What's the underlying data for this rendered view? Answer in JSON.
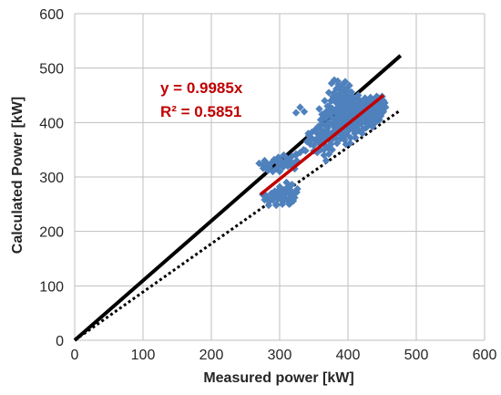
{
  "chart_data": {
    "type": "scatter",
    "xlabel": "Measured power [kW]",
    "ylabel": "Calculated Power [kW]",
    "xlim": [
      0,
      600
    ],
    "ylim": [
      0,
      600
    ],
    "x_ticks": [
      "0",
      "100",
      "200",
      "300",
      "400",
      "500",
      "600"
    ],
    "y_ticks": [
      "0",
      "100",
      "200",
      "300",
      "400",
      "500",
      "600"
    ],
    "grid": true,
    "annotation": {
      "equation": "y = 0.9985x",
      "r_squared": "R² = 0.5851"
    },
    "colors": {
      "points": "#4f81bd",
      "trend": "#c00000",
      "reference": "#000000",
      "grid": "#bfbfbf"
    },
    "lines": [
      {
        "role": "reference-solid",
        "from": [
          0,
          0
        ],
        "to": [
          477,
          523
        ]
      },
      {
        "role": "reference-dotted",
        "from": [
          0,
          0
        ],
        "to": [
          477,
          423
        ]
      },
      {
        "role": "trendline",
        "from": [
          272,
          268
        ],
        "to": [
          452,
          450
        ]
      }
    ],
    "points": [
      [
        270,
        325
      ],
      [
        275,
        322
      ],
      [
        280,
        320
      ],
      [
        278,
        330
      ],
      [
        285,
        318
      ],
      [
        288,
        326
      ],
      [
        292,
        332
      ],
      [
        295,
        315
      ],
      [
        300,
        322
      ],
      [
        302,
        330
      ],
      [
        305,
        318
      ],
      [
        308,
        326
      ],
      [
        310,
        335
      ],
      [
        312,
        320
      ],
      [
        315,
        328
      ],
      [
        318,
        338
      ],
      [
        320,
        325
      ],
      [
        322,
        315
      ],
      [
        325,
        330
      ],
      [
        283,
        312
      ],
      [
        290,
        310
      ],
      [
        298,
        336
      ],
      [
        276,
        316
      ],
      [
        306,
        340
      ],
      [
        316,
        322
      ],
      [
        324,
        342
      ],
      [
        282,
        324
      ],
      [
        296,
        328
      ],
      [
        314,
        332
      ],
      [
        300,
        310
      ],
      [
        275,
        268
      ],
      [
        280,
        262
      ],
      [
        285,
        255
      ],
      [
        290,
        258
      ],
      [
        292,
        265
      ],
      [
        295,
        250
      ],
      [
        298,
        260
      ],
      [
        300,
        270
      ],
      [
        302,
        262
      ],
      [
        305,
        255
      ],
      [
        308,
        268
      ],
      [
        310,
        258
      ],
      [
        312,
        272
      ],
      [
        315,
        262
      ],
      [
        318,
        266
      ],
      [
        320,
        256
      ],
      [
        288,
        270
      ],
      [
        296,
        267
      ],
      [
        304,
        250
      ],
      [
        314,
        250
      ],
      [
        278,
        258
      ],
      [
        293,
        274
      ],
      [
        306,
        276
      ],
      [
        322,
        262
      ],
      [
        284,
        248
      ],
      [
        312,
        282
      ],
      [
        300,
        282
      ],
      [
        310,
        290
      ],
      [
        316,
        276
      ],
      [
        280,
        266
      ],
      [
        295,
        248
      ],
      [
        325,
        272
      ],
      [
        322,
        270
      ],
      [
        316,
        252
      ],
      [
        326,
        278
      ],
      [
        318,
        286
      ],
      [
        298,
        275
      ],
      [
        288,
        262
      ],
      [
        340,
        365
      ],
      [
        345,
        372
      ],
      [
        350,
        358
      ],
      [
        352,
        368
      ],
      [
        355,
        380
      ],
      [
        358,
        362
      ],
      [
        360,
        370
      ],
      [
        362,
        385
      ],
      [
        365,
        360
      ],
      [
        368,
        375
      ],
      [
        370,
        390
      ],
      [
        372,
        368
      ],
      [
        375,
        380
      ],
      [
        378,
        395
      ],
      [
        360,
        350
      ],
      [
        350,
        348
      ],
      [
        365,
        350
      ],
      [
        355,
        345
      ],
      [
        370,
        355
      ],
      [
        345,
        360
      ],
      [
        365,
        340
      ],
      [
        368,
        330
      ],
      [
        372,
        352
      ],
      [
        375,
        360
      ],
      [
        378,
        370
      ],
      [
        380,
        385
      ],
      [
        382,
        372
      ],
      [
        385,
        395
      ],
      [
        388,
        380
      ],
      [
        390,
        400
      ],
      [
        392,
        385
      ],
      [
        395,
        405
      ],
      [
        398,
        390
      ],
      [
        400,
        410
      ],
      [
        402,
        395
      ],
      [
        405,
        415
      ],
      [
        408,
        398
      ],
      [
        410,
        420
      ],
      [
        412,
        405
      ],
      [
        415,
        425
      ],
      [
        418,
        408
      ],
      [
        420,
        430
      ],
      [
        422,
        412
      ],
      [
        425,
        435
      ],
      [
        428,
        415
      ],
      [
        430,
        438
      ],
      [
        432,
        418
      ],
      [
        435,
        440
      ],
      [
        438,
        420
      ],
      [
        440,
        442
      ],
      [
        442,
        424
      ],
      [
        445,
        445
      ],
      [
        448,
        428
      ],
      [
        450,
        448
      ],
      [
        440,
        430
      ],
      [
        385,
        410
      ],
      [
        388,
        420
      ],
      [
        390,
        430
      ],
      [
        392,
        415
      ],
      [
        395,
        425
      ],
      [
        398,
        435
      ],
      [
        400,
        420
      ],
      [
        402,
        432
      ],
      [
        405,
        440
      ],
      [
        408,
        425
      ],
      [
        410,
        435
      ],
      [
        412,
        445
      ],
      [
        415,
        430
      ],
      [
        418,
        440
      ],
      [
        420,
        422
      ],
      [
        380,
        405
      ],
      [
        382,
        418
      ],
      [
        385,
        428
      ],
      [
        388,
        412
      ],
      [
        390,
        440
      ],
      [
        392,
        425
      ],
      [
        395,
        448
      ],
      [
        398,
        430
      ],
      [
        400,
        445
      ],
      [
        402,
        438
      ],
      [
        380,
        395
      ],
      [
        383,
        378
      ],
      [
        386,
        388
      ],
      [
        389,
        370
      ],
      [
        392,
        380
      ],
      [
        395,
        368
      ],
      [
        398,
        378
      ],
      [
        401,
        385
      ],
      [
        404,
        372
      ],
      [
        407,
        388
      ],
      [
        410,
        380
      ],
      [
        413,
        392
      ],
      [
        416,
        385
      ],
      [
        419,
        398
      ],
      [
        422,
        388
      ],
      [
        425,
        400
      ],
      [
        428,
        392
      ],
      [
        431,
        405
      ],
      [
        434,
        396
      ],
      [
        437,
        410
      ],
      [
        440,
        400
      ],
      [
        443,
        414
      ],
      [
        446,
        405
      ],
      [
        449,
        418
      ],
      [
        436,
        392
      ],
      [
        430,
        398
      ],
      [
        424,
        404
      ],
      [
        418,
        410
      ],
      [
        412,
        416
      ],
      [
        406,
        422
      ],
      [
        400,
        428
      ],
      [
        394,
        434
      ],
      [
        388,
        440
      ],
      [
        382,
        446
      ],
      [
        376,
        440
      ],
      [
        372,
        430
      ],
      [
        378,
        420
      ],
      [
        384,
        410
      ],
      [
        390,
        400
      ],
      [
        396,
        390
      ],
      [
        360,
        405
      ],
      [
        362,
        415
      ],
      [
        364,
        408
      ],
      [
        368,
        420
      ],
      [
        370,
        430
      ],
      [
        373,
        425
      ],
      [
        375,
        440
      ],
      [
        378,
        448
      ],
      [
        380,
        455
      ],
      [
        383,
        462
      ],
      [
        386,
        470
      ],
      [
        389,
        460
      ],
      [
        392,
        465
      ],
      [
        395,
        455
      ],
      [
        398,
        450
      ],
      [
        376,
        472
      ],
      [
        380,
        478
      ],
      [
        385,
        476
      ],
      [
        396,
        475
      ],
      [
        402,
        468
      ],
      [
        390,
        445
      ],
      [
        372,
        455
      ],
      [
        366,
        440
      ],
      [
        358,
        425
      ],
      [
        362,
        398
      ],
      [
        387,
        452
      ],
      [
        393,
        442
      ],
      [
        399,
        458
      ],
      [
        405,
        450
      ],
      [
        411,
        444
      ],
      [
        384,
        425
      ],
      [
        406,
        405
      ],
      [
        414,
        398
      ],
      [
        426,
        412
      ],
      [
        434,
        425
      ],
      [
        444,
        432
      ],
      [
        452,
        440
      ],
      [
        455,
        428
      ],
      [
        452,
        420
      ],
      [
        447,
        438
      ],
      [
        428,
        428
      ],
      [
        420,
        412
      ],
      [
        416,
        400
      ],
      [
        408,
        410
      ],
      [
        396,
        412
      ],
      [
        404,
        400
      ],
      [
        372,
        400
      ],
      [
        376,
        410
      ],
      [
        366,
        395
      ],
      [
        356,
        392
      ],
      [
        348,
        370
      ],
      [
        342,
        380
      ],
      [
        338,
        348
      ],
      [
        335,
        350
      ],
      [
        330,
        345
      ],
      [
        324,
        340
      ],
      [
        364,
        382
      ],
      [
        369,
        388
      ],
      [
        374,
        398
      ],
      [
        379,
        398
      ],
      [
        384,
        402
      ],
      [
        389,
        408
      ],
      [
        394,
        396
      ],
      [
        399,
        400
      ],
      [
        404,
        408
      ],
      [
        409,
        412
      ],
      [
        414,
        420
      ],
      [
        419,
        418
      ],
      [
        424,
        424
      ],
      [
        429,
        430
      ],
      [
        434,
        432
      ],
      [
        439,
        436
      ],
      [
        444,
        420
      ],
      [
        449,
        432
      ],
      [
        454,
        436
      ],
      [
        437,
        402
      ],
      [
        426,
        390
      ],
      [
        421,
        380
      ],
      [
        411,
        372
      ],
      [
        403,
        362
      ],
      [
        397,
        360
      ],
      [
        392,
        372
      ],
      [
        384,
        362
      ],
      [
        377,
        350
      ],
      [
        372,
        342
      ],
      [
        336,
        420
      ],
      [
        330,
        428
      ],
      [
        324,
        418
      ],
      [
        356,
        372
      ],
      [
        366,
        372
      ],
      [
        361,
        376
      ],
      [
        371,
        382
      ],
      [
        381,
        390
      ],
      [
        391,
        392
      ],
      [
        401,
        398
      ],
      [
        411,
        400
      ],
      [
        421,
        405
      ],
      [
        431,
        412
      ],
      [
        441,
        418
      ],
      [
        451,
        424
      ],
      [
        425,
        445
      ],
      [
        415,
        450
      ],
      [
        405,
        456
      ],
      [
        398,
        462
      ],
      [
        392,
        470
      ],
      [
        387,
        430
      ],
      [
        383,
        436
      ],
      [
        377,
        426
      ],
      [
        371,
        416
      ],
      [
        367,
        408
      ],
      [
        353,
        388
      ],
      [
        347,
        382
      ],
      [
        343,
        376
      ],
      [
        358,
        392
      ],
      [
        363,
        364
      ],
      [
        395,
        418
      ],
      [
        406,
        430
      ],
      [
        417,
        436
      ],
      [
        433,
        446
      ],
      [
        442,
        448
      ],
      [
        400,
        398
      ],
      [
        394,
        402
      ],
      [
        388,
        396
      ],
      [
        382,
        384
      ],
      [
        376,
        378
      ],
      [
        410,
        428
      ],
      [
        420,
        434
      ],
      [
        430,
        422
      ],
      [
        440,
        410
      ],
      [
        448,
        412
      ]
    ]
  }
}
